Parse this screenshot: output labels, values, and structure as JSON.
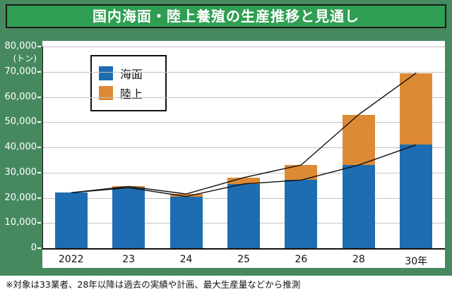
{
  "title": "国内海面・陸上養殖の生産推移と見通し",
  "note": "※対象は33業者、28年以降は過去の実績や計画、最大生産量などから推測",
  "unit_label": "(トン)",
  "colors": {
    "background": "#46895f",
    "title_bg": "#2f9e52",
    "sea": "#1e6db2",
    "land": "#dd8a35",
    "trend_line": "#111111"
  },
  "chart_data": {
    "type": "bar",
    "subtype": "stacked-with-trend-lines",
    "categories": [
      "2022",
      "23",
      "24",
      "25",
      "26",
      "28",
      "30年"
    ],
    "series": [
      {
        "name": "海面",
        "color_key": "sea",
        "values": [
          22000,
          24000,
          20500,
          25500,
          27000,
          33000,
          41000
        ]
      },
      {
        "name": "陸上",
        "color_key": "land",
        "values": [
          0,
          500,
          1000,
          2500,
          6000,
          20000,
          28500
        ]
      }
    ],
    "totals": [
      22000,
      24500,
      21500,
      28000,
      33000,
      53000,
      69500
    ],
    "ylim": [
      0,
      80000
    ],
    "ytick_step": 10000,
    "ytick_labels": [
      "0",
      "10,000",
      "20,000",
      "30,000",
      "40,000",
      "50,000",
      "60,000",
      "70,000",
      "80,000"
    ],
    "grid": true,
    "legend_position": "top-left-inside",
    "trend_lines": [
      "total",
      "sea-top"
    ]
  }
}
